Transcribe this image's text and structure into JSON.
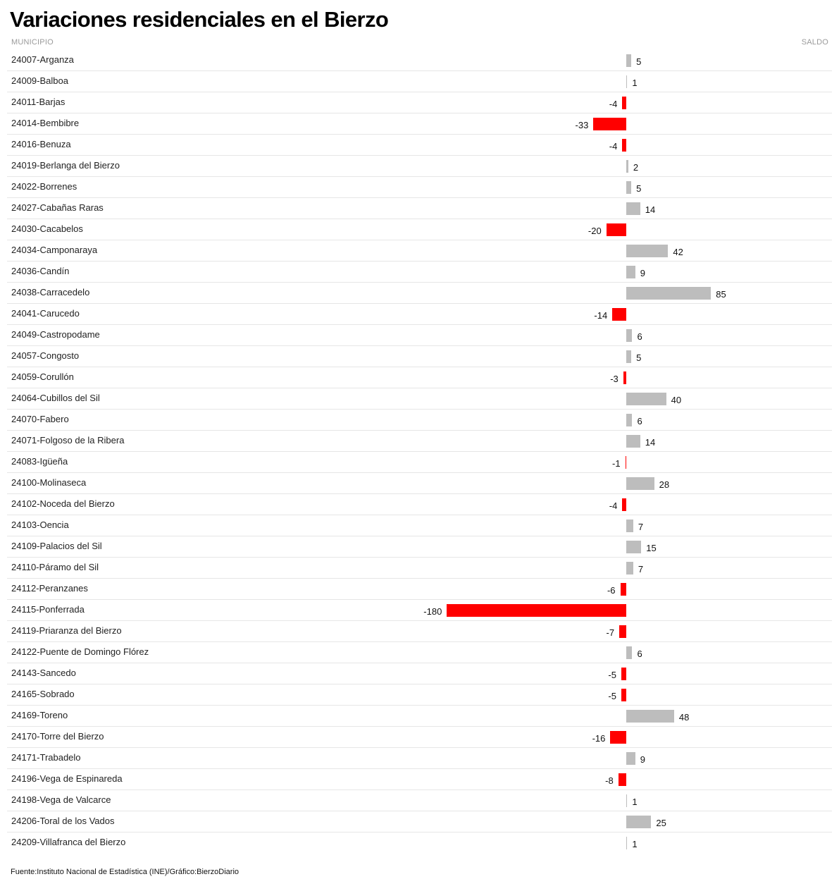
{
  "chart_data": {
    "type": "bar",
    "orientation": "horizontal",
    "title": "Variaciones residenciales en el Bierzo",
    "column_headers": {
      "category": "MUNICIPIO",
      "value": "SALDO"
    },
    "categories": [
      "24007-Arganza",
      "24009-Balboa",
      "24011-Barjas",
      "24014-Bembibre",
      "24016-Benuza",
      "24019-Berlanga del Bierzo",
      "24022-Borrenes",
      "24027-Cabañas Raras",
      "24030-Cacabelos",
      "24034-Camponaraya",
      "24036-Candín",
      "24038-Carracedelo",
      "24041-Carucedo",
      "24049-Castropodame",
      "24057-Congosto",
      "24059-Corullón",
      "24064-Cubillos del Sil",
      "24070-Fabero",
      "24071-Folgoso de la Ribera",
      "24083-Igüeña",
      "24100-Molinaseca",
      "24102-Noceda del Bierzo",
      "24103-Oencia",
      "24109-Palacios del Sil",
      "24110-Páramo del Sil",
      "24112-Peranzanes",
      "24115-Ponferrada",
      "24119-Priaranza del Bierzo",
      "24122-Puente de Domingo Flórez",
      "24143-Sancedo",
      "24165-Sobrado",
      "24169-Toreno",
      "24170-Torre del Bierzo",
      "24171-Trabadelo",
      "24196-Vega de Espinareda",
      "24198-Vega de Valcarce",
      "24206-Toral de los Vados",
      "24209-Villafranca del Bierzo"
    ],
    "values": [
      5,
      1,
      -4,
      -33,
      -4,
      2,
      5,
      14,
      -20,
      42,
      9,
      85,
      -14,
      6,
      5,
      -3,
      40,
      6,
      14,
      -1,
      28,
      -4,
      7,
      15,
      7,
      -6,
      -180,
      -7,
      6,
      -5,
      -5,
      48,
      -16,
      9,
      -8,
      1,
      25,
      1
    ],
    "colors": {
      "positive": "#bdbdbd",
      "negative": "#ff0000"
    },
    "grid": false,
    "legend": "none"
  },
  "source": "Fuente:Instituto Nacional de Estadística (INE)/Gráfico:BierzoDiario"
}
